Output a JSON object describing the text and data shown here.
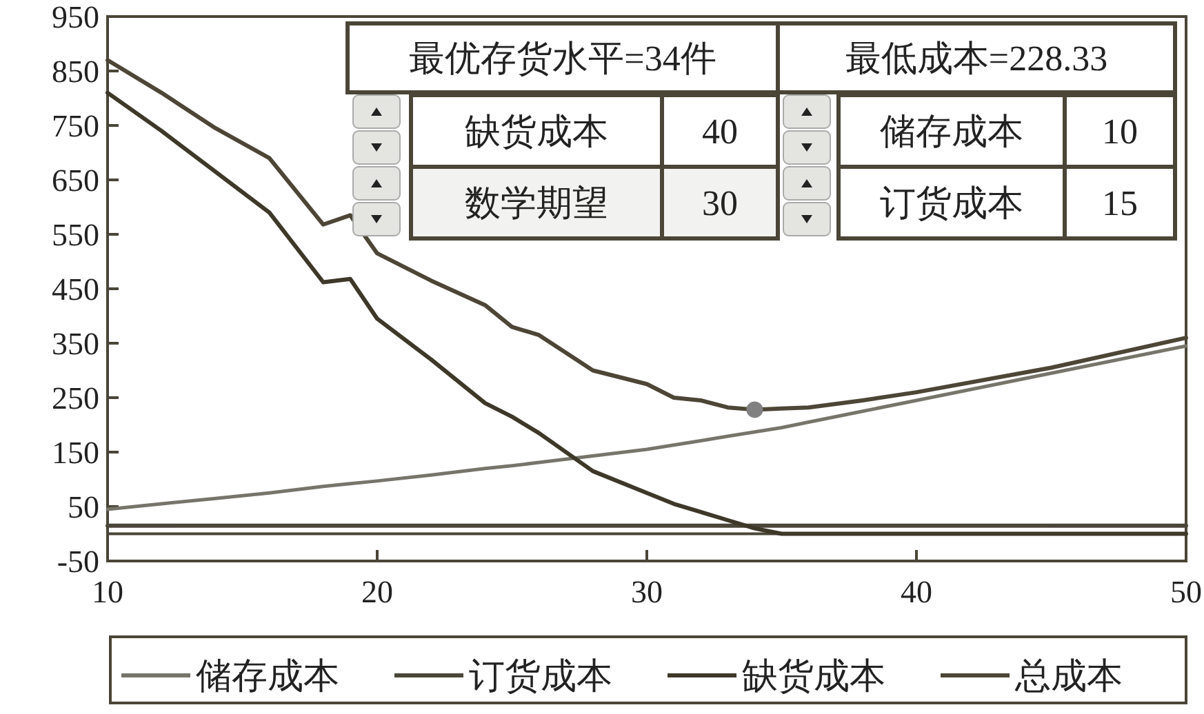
{
  "chart_data": {
    "type": "line",
    "x": [
      10,
      12,
      14,
      16,
      18,
      19,
      20,
      22,
      24,
      25,
      26,
      28,
      30,
      31,
      32,
      33,
      34,
      35,
      36,
      38,
      40,
      45,
      50
    ],
    "series": [
      {
        "name": "储存成本",
        "color": "#77756a",
        "values": [
          45,
          55,
          65,
          75,
          87,
          92,
          97,
          108,
          120,
          125,
          131,
          143,
          155,
          163,
          171,
          179,
          187,
          195,
          205,
          225,
          245,
          295,
          345
        ]
      },
      {
        "name": "订货成本",
        "color": "#4a4738",
        "values": [
          15,
          15,
          15,
          15,
          15,
          15,
          15,
          15,
          15,
          15,
          15,
          15,
          15,
          15,
          15,
          15,
          15,
          15,
          15,
          15,
          15,
          15,
          15
        ]
      },
      {
        "name": "缺货成本",
        "color": "#3d3828",
        "values": [
          810,
          740,
          665,
          590,
          462,
          468,
          395,
          320,
          240,
          215,
          185,
          115,
          75,
          55,
          40,
          25,
          10,
          0,
          0,
          0,
          0,
          0,
          0
        ]
      },
      {
        "name": "总成本",
        "color": "#4d4636",
        "values": [
          870,
          810,
          745,
          690,
          568,
          585,
          515,
          465,
          420,
          380,
          365,
          300,
          275,
          250,
          245,
          232,
          228,
          230,
          232,
          245,
          260,
          305,
          360
        ]
      },
      {
        "type": "scatter",
        "color": "#808080",
        "marker": "circle",
        "x": [
          34
        ],
        "values": [
          228
        ]
      }
    ],
    "xlim": [
      10,
      50
    ],
    "xticks": [
      10,
      20,
      30,
      40,
      50
    ],
    "ylim": [
      -50,
      950
    ],
    "yticks": [
      -50,
      50,
      150,
      250,
      350,
      450,
      550,
      650,
      750,
      850,
      950
    ],
    "grid": false,
    "legend": "bottom",
    "marker": "none",
    "line_style": "solid",
    "annotations": [
      "最优存货水平=34件",
      "最低成本=228.33",
      "缺货成本",
      "40",
      "储存成本",
      "10",
      "数学期望",
      "30",
      "订货成本",
      "15"
    ]
  }
}
